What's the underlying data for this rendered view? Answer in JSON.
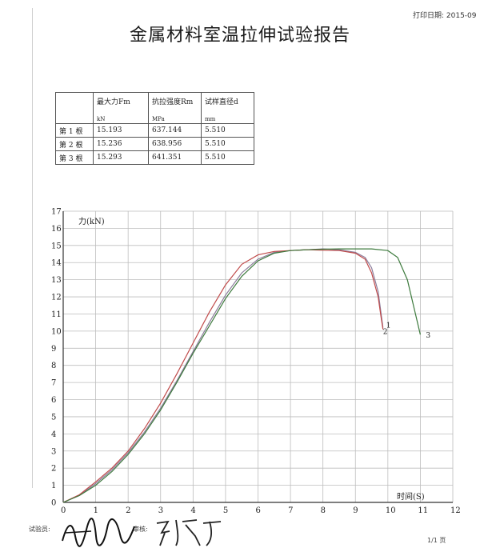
{
  "header": {
    "print_date": "打印日期: 2015-09",
    "title": "金属材料室温拉伸试验报告"
  },
  "table": {
    "headers": [
      "",
      "最大力Fm",
      "抗拉强度Rm",
      "试样直径d"
    ],
    "units": [
      "",
      "kN",
      "MPa",
      "mm"
    ],
    "rows": [
      [
        "第 1 根",
        "15.193",
        "637.144",
        "5.510"
      ],
      [
        "第 2 根",
        "15.236",
        "638.956",
        "5.510"
      ],
      [
        "第 3 根",
        "15.293",
        "641.351",
        "5.510"
      ]
    ]
  },
  "chart_data": {
    "type": "line",
    "ylabel": "力(kN)",
    "xlabel": "时间(S)",
    "xlim": [
      0,
      12
    ],
    "ylim": [
      0,
      17
    ],
    "x_ticks": [
      "0",
      "1",
      "2",
      "3",
      "4",
      "5",
      "6",
      "7",
      "8",
      "9",
      "10",
      "11",
      "12"
    ],
    "y_ticks": [
      "0",
      "1",
      "2",
      "3",
      "4",
      "5",
      "6",
      "7",
      "8",
      "9",
      "10",
      "11",
      "12",
      "13",
      "14",
      "15",
      "16",
      "17"
    ],
    "grid": true,
    "series": [
      {
        "name": "1",
        "color": "#8a7c9a",
        "x": [
          0,
          0.5,
          1,
          1.5,
          2,
          2.5,
          3,
          3.5,
          4,
          4.5,
          5,
          5.5,
          6,
          6.5,
          7,
          7.5,
          8,
          8.5,
          9,
          9.3,
          9.5,
          9.7,
          9.8,
          9.85
        ],
        "y": [
          0,
          0.4,
          1.1,
          1.9,
          2.9,
          4.1,
          5.5,
          7.1,
          8.8,
          10.5,
          12.1,
          13.4,
          14.2,
          14.6,
          14.7,
          14.75,
          14.8,
          14.75,
          14.6,
          14.3,
          13.7,
          12.3,
          10.9,
          10.2
        ]
      },
      {
        "name": "2",
        "color": "#c04a4a",
        "x": [
          0,
          0.5,
          1,
          1.5,
          2,
          2.5,
          3,
          3.5,
          4,
          4.5,
          5,
          5.5,
          6,
          6.5,
          7,
          7.5,
          8,
          8.5,
          9,
          9.3,
          9.5,
          9.7,
          9.8,
          9.85
        ],
        "y": [
          0,
          0.45,
          1.2,
          2.0,
          3.0,
          4.3,
          5.8,
          7.5,
          9.3,
          11.1,
          12.7,
          13.9,
          14.45,
          14.65,
          14.7,
          14.75,
          14.72,
          14.7,
          14.55,
          14.2,
          13.4,
          12.0,
          10.7,
          10.1
        ]
      },
      {
        "name": "3",
        "color": "#3d7a3d",
        "x": [
          0,
          0.5,
          1,
          1.5,
          2,
          2.5,
          3,
          3.5,
          4,
          4.5,
          5,
          5.5,
          6,
          6.5,
          7,
          7.5,
          8,
          8.5,
          9,
          9.5,
          10,
          10.3,
          10.6,
          10.8,
          11
        ],
        "y": [
          0,
          0.4,
          1.0,
          1.8,
          2.8,
          4.0,
          5.4,
          7.0,
          8.7,
          10.3,
          11.9,
          13.2,
          14.1,
          14.55,
          14.7,
          14.75,
          14.78,
          14.8,
          14.8,
          14.8,
          14.7,
          14.3,
          13.0,
          11.4,
          9.8
        ]
      }
    ]
  },
  "footer": {
    "tester_label": "试验员:",
    "reviewer_label": "审核:",
    "page": "1/1 页"
  }
}
